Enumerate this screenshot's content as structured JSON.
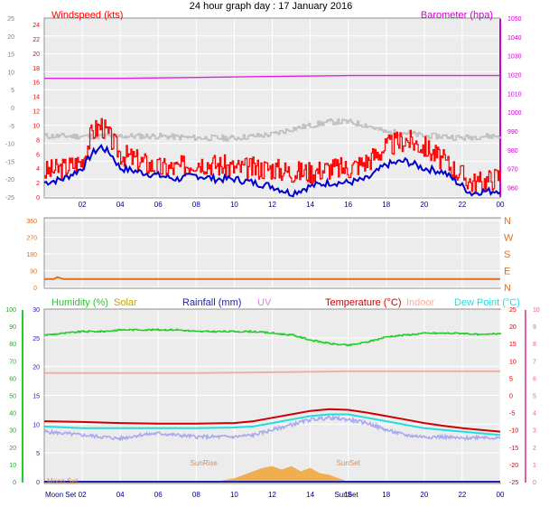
{
  "title": "24 hour graph day : 17 January 2016",
  "colors": {
    "wind_red": "#ff0000",
    "wind_blue": "#0000cc",
    "chill_grey": "#c0c0c0",
    "baro": "#e020e0",
    "dir": "#e07020",
    "humidity": "#22cc22",
    "solar": "#c8a000",
    "rain": "#2222aa",
    "uv": "#e080e0",
    "temp": "#cc0000",
    "indoor": "#f0b0a0",
    "dew": "#22dddd",
    "apparent": "#a8a8f0",
    "sun_fill": "#f0a840"
  },
  "chart_data": [
    {
      "type": "line",
      "name": "wind-barometer-panel",
      "left_axis_label": "Windspeed (kts)",
      "right_axis_label": "Barometer (hpa)",
      "x_ticks": [
        "02",
        "04",
        "06",
        "08",
        "10",
        "12",
        "14",
        "16",
        "18",
        "20",
        "22",
        "00"
      ],
      "y_left_ticks": [
        "0",
        "2",
        "4",
        "6",
        "8",
        "10",
        "12",
        "14",
        "16",
        "18",
        "20",
        "22",
        "24"
      ],
      "ylim_left": [
        0,
        25
      ],
      "y_outer_ticks": [
        "-25",
        "-20",
        "-15",
        "-10",
        "-5",
        "0",
        "5",
        "10",
        "15",
        "20",
        "25"
      ],
      "ylim_outer": [
        -25,
        25
      ],
      "y_right_ticks": [
        "960",
        "970",
        "980",
        "990",
        "1000",
        "1010",
        "1020",
        "1030",
        "1040",
        "1050"
      ],
      "ylim_right": [
        955,
        1050
      ],
      "x_range_hours": [
        0,
        24
      ],
      "series": [
        {
          "key": "gust",
          "axis": "left",
          "color": "#ff0000",
          "x": [
            0,
            1,
            2,
            2.5,
            3,
            3.5,
            4,
            5,
            6,
            7,
            8,
            9,
            10,
            11,
            12,
            13,
            14,
            15,
            16,
            17,
            18,
            19,
            20,
            21,
            22,
            22.5,
            23,
            23.5,
            24
          ],
          "y": [
            3.5,
            4,
            5,
            9,
            10,
            8,
            6,
            5,
            4,
            4,
            5,
            4.5,
            4,
            4,
            4,
            3.5,
            3.5,
            4,
            4,
            5,
            7,
            8,
            7,
            5,
            3,
            2,
            2,
            2.5,
            3
          ]
        },
        {
          "key": "wind",
          "axis": "left",
          "color": "#0000cc",
          "x": [
            0,
            1,
            2,
            2.5,
            3,
            3.5,
            4,
            5,
            6,
            7,
            8,
            9,
            10,
            11,
            12,
            13,
            14,
            15,
            16,
            17,
            18,
            19,
            20,
            21,
            22,
            22.5,
            23,
            23.5,
            24
          ],
          "y": [
            2,
            2.5,
            4,
            6,
            7,
            6,
            4,
            3.5,
            3,
            2.5,
            3,
            2.5,
            2.5,
            2,
            1.5,
            0.5,
            1.5,
            2,
            2,
            2.5,
            4.5,
            5,
            4,
            3.5,
            1.5,
            0.5,
            0.8,
            0.8,
            1
          ]
        },
        {
          "key": "wind_chill",
          "axis": "outer",
          "color": "#c0c0c0",
          "x": [
            0,
            2,
            4,
            6,
            8,
            10,
            11,
            12,
            13,
            14,
            15,
            16,
            17,
            18,
            19,
            20,
            21,
            22,
            23,
            24
          ],
          "y": [
            -8,
            -8,
            -8,
            -8,
            -8.5,
            -8.5,
            -8,
            -7.5,
            -6,
            -5,
            -4,
            -4,
            -5,
            -7,
            -7,
            -8,
            -8,
            -8.5,
            -8,
            -8
          ]
        },
        {
          "key": "barometer",
          "axis": "right",
          "color": "#e020e0",
          "x": [
            0,
            4,
            8,
            12,
            16,
            20,
            24
          ],
          "y": [
            1018,
            1018,
            1018.5,
            1019,
            1019.5,
            1019.5,
            1019.5
          ]
        }
      ]
    },
    {
      "type": "line",
      "name": "wind-direction-panel",
      "y_left_ticks": [
        "0",
        "90",
        "180",
        "270",
        "360"
      ],
      "ylim_left": [
        0,
        360
      ],
      "y_right_ticks": [
        "N",
        "E",
        "S",
        "W",
        "N"
      ],
      "x_range_hours": [
        0,
        24
      ],
      "series": [
        {
          "key": "direction",
          "color": "#e07020",
          "x": [
            0,
            0.5,
            0.7,
            1,
            4,
            8,
            12,
            16,
            20,
            24
          ],
          "y": [
            45,
            45,
            55,
            45,
            45,
            45,
            45,
            45,
            45,
            45
          ]
        }
      ]
    },
    {
      "type": "line",
      "name": "humidity-temperature-panel",
      "legend": [
        "Humidity (%)",
        "Solar",
        "Rainfall (mm)",
        "UV",
        "Temperature (°C)",
        "Indoor",
        "Dew Point (°C)"
      ],
      "x_ticks": [
        "02",
        "04",
        "06",
        "08",
        "10",
        "12",
        "14",
        "16",
        "18",
        "20",
        "22",
        "00"
      ],
      "y_left_ticks": [
        "0",
        "10",
        "20",
        "30",
        "40",
        "50",
        "60",
        "70",
        "80",
        "90",
        "100"
      ],
      "ylim_left": [
        0,
        100
      ],
      "y_rain_ticks": [
        "0",
        "5",
        "10",
        "15",
        "20",
        "25",
        "30"
      ],
      "ylim_rain": [
        0,
        30
      ],
      "y_temp_ticks": [
        "-25",
        "-20",
        "-15",
        "-10",
        "-5",
        "0",
        "5",
        "10",
        "15",
        "20",
        "25"
      ],
      "ylim_temp": [
        -25,
        25
      ],
      "y_uv_ticks": [
        "0",
        "1",
        "2",
        "3",
        "4",
        "5",
        "6",
        "7",
        "8",
        "9",
        "10"
      ],
      "ylim_uv": [
        0,
        10
      ],
      "annotations": [
        {
          "text": "Moon Set",
          "x_hour": 0.1
        },
        {
          "text": "SunRise",
          "x_hour": 8.4
        },
        {
          "text": "SunSet",
          "x_hour": 16
        },
        {
          "text": "Moon Set",
          "x_hour": 0.1,
          "row": "axis"
        },
        {
          "text": "SunSet",
          "x_hour": 15.9,
          "row": "axis"
        }
      ],
      "series": [
        {
          "key": "humidity",
          "axis": "left",
          "color": "#22cc22",
          "x": [
            0,
            1,
            2,
            3,
            4,
            5,
            6,
            7,
            8,
            9,
            10,
            11,
            12,
            13,
            14,
            15,
            16,
            17,
            18,
            19,
            20,
            21,
            22,
            23,
            24
          ],
          "y": [
            85,
            86,
            87,
            87,
            88,
            88,
            88,
            88,
            87,
            87,
            87,
            87,
            86,
            85,
            82,
            80,
            79,
            81,
            84,
            85,
            86,
            86,
            86,
            85,
            86
          ]
        },
        {
          "key": "temperature",
          "axis": "temp",
          "color": "#cc0000",
          "x": [
            0,
            2,
            4,
            6,
            8,
            10,
            11,
            12,
            13,
            14,
            15,
            16,
            17,
            18,
            19,
            20,
            21,
            22,
            23,
            24
          ],
          "y": [
            -7.5,
            -7.7,
            -8,
            -8.2,
            -8.2,
            -8,
            -7.5,
            -6.5,
            -5.5,
            -4.5,
            -4,
            -4.2,
            -5,
            -6,
            -7,
            -8,
            -8.8,
            -9.5,
            -10,
            -10.5
          ]
        },
        {
          "key": "dew_point",
          "axis": "temp",
          "color": "#22dddd",
          "x": [
            0,
            2,
            4,
            6,
            8,
            10,
            11,
            12,
            13,
            14,
            15,
            16,
            17,
            18,
            19,
            20,
            21,
            22,
            23,
            24
          ],
          "y": [
            -9,
            -9.5,
            -9.5,
            -9.5,
            -9.5,
            -9.3,
            -9,
            -8,
            -7,
            -6,
            -5.5,
            -5.5,
            -6.5,
            -7.5,
            -8.5,
            -9.5,
            -10,
            -10.5,
            -11,
            -11.5
          ]
        },
        {
          "key": "apparent",
          "axis": "temp",
          "color": "#a8a8f0",
          "x": [
            0,
            1,
            2,
            3,
            4,
            5,
            6,
            7,
            8,
            9,
            10,
            11,
            12,
            13,
            14,
            15,
            16,
            17,
            18,
            19,
            20,
            21,
            22,
            23,
            24
          ],
          "y": [
            -10.5,
            -11,
            -11.5,
            -12,
            -12.5,
            -11.5,
            -11,
            -11.5,
            -12,
            -12,
            -12,
            -11.5,
            -10,
            -8.5,
            -7,
            -6.5,
            -7,
            -8,
            -10,
            -11.5,
            -12,
            -12,
            -12.5,
            -12,
            -12.5
          ]
        },
        {
          "key": "indoor",
          "axis": "temp",
          "color": "#f0b0a0",
          "x": [
            0,
            4,
            8,
            12,
            16,
            20,
            24
          ],
          "y": [
            6.5,
            6.5,
            6.5,
            6.7,
            7,
            7,
            7
          ]
        },
        {
          "key": "solar",
          "axis": "left",
          "color": "#f0a840",
          "x": [
            9,
            10,
            11,
            11.5,
            12,
            12.5,
            13,
            13.5,
            14,
            14.5,
            15,
            15.5,
            16
          ],
          "y": [
            0,
            2,
            6,
            8,
            9,
            7,
            9,
            6,
            8,
            5,
            4,
            2,
            0
          ]
        },
        {
          "key": "rain",
          "axis": "rain",
          "color": "#2222aa",
          "x": [
            0,
            24
          ],
          "y": [
            0,
            0
          ]
        }
      ]
    }
  ]
}
